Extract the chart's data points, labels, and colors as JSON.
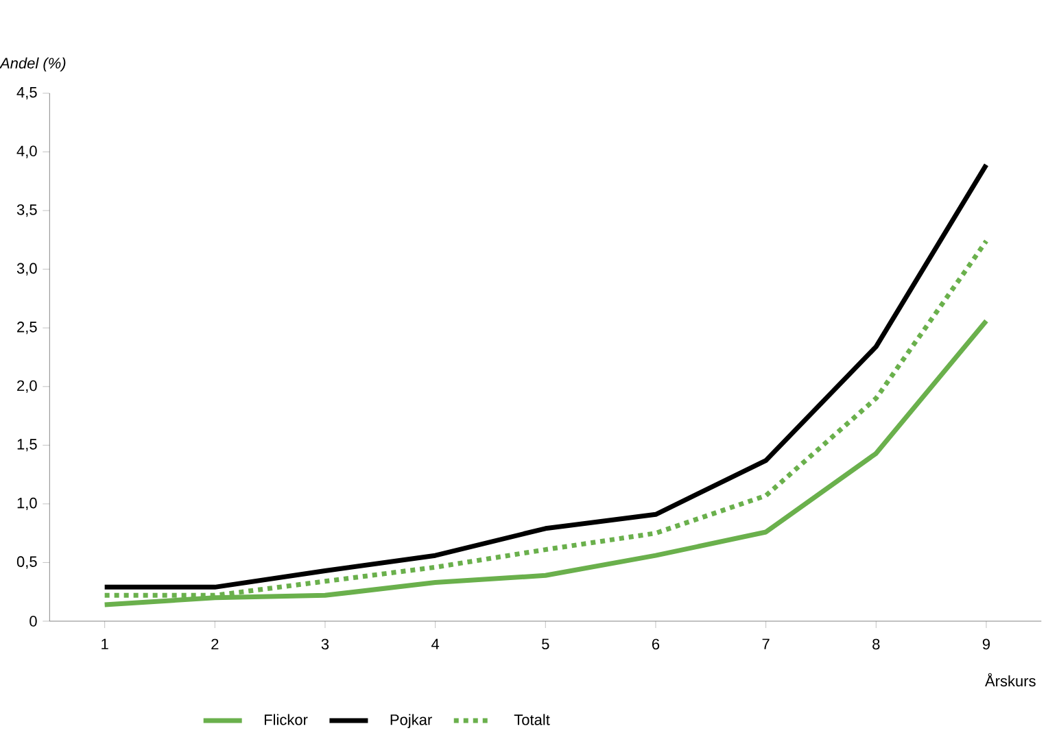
{
  "chart_data": {
    "type": "line",
    "xlabel": "Årskurs",
    "ylabel": "Andel (%)",
    "categories": [
      "1",
      "2",
      "3",
      "4",
      "5",
      "6",
      "7",
      "8",
      "9"
    ],
    "series": [
      {
        "name": "Flickor",
        "color": "#6ab04c",
        "values": [
          0.14,
          0.2,
          0.22,
          0.33,
          0.39,
          0.56,
          0.76,
          1.43,
          2.56
        ]
      },
      {
        "name": "Pojkar",
        "color": "#000000",
        "values": [
          0.29,
          0.29,
          0.43,
          0.56,
          0.79,
          0.91,
          1.37,
          2.34,
          3.89
        ]
      },
      {
        "name": "Totalt",
        "color": "#6ab04c",
        "line_style": "dotted",
        "values": [
          0.22,
          0.22,
          0.34,
          0.46,
          0.61,
          0.75,
          1.07,
          1.9,
          3.24
        ]
      }
    ],
    "ylim": [
      0,
      4.5
    ],
    "yticks": [
      0,
      {
        "value": 0.5,
        "label": "0,5"
      },
      {
        "value": 1,
        "label": "1,0"
      },
      {
        "value": 1.5,
        "label": "1,5"
      },
      {
        "value": 2,
        "label": "2,0"
      },
      {
        "value": 2.5,
        "label": "2,5"
      },
      {
        "value": 3,
        "label": "3,0"
      },
      {
        "value": 3.5,
        "label": "3,5"
      },
      {
        "value": 4,
        "label": "4,0"
      },
      {
        "value": 4.5,
        "label": "4,5"
      }
    ],
    "grid": false,
    "legend": "bottom",
    "marker": "none"
  }
}
